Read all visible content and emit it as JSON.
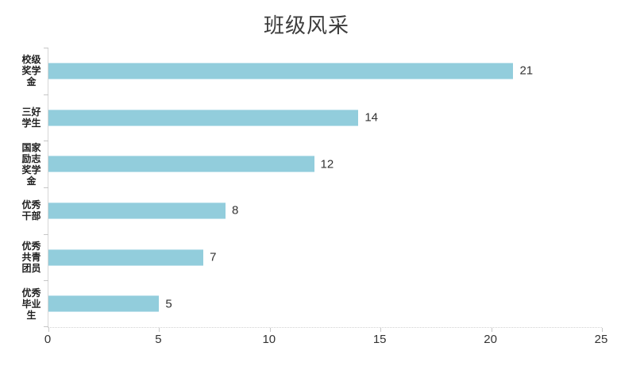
{
  "chart_data": {
    "type": "bar",
    "orientation": "horizontal",
    "title": "班级风采",
    "categories": [
      "校级奖学金",
      "三好学生",
      "国家励志奖学金",
      "优秀干部",
      "优秀共青团员",
      "优秀毕业生"
    ],
    "values": [
      21,
      14,
      12,
      8,
      7,
      5
    ],
    "data_labels": [
      "21",
      "14",
      "12",
      "8",
      "7",
      "5"
    ],
    "xlabel": "",
    "ylabel": "",
    "xlim": [
      0,
      25
    ],
    "x_ticks": [
      0,
      5,
      10,
      15,
      20,
      25
    ],
    "grid": false,
    "legend": false,
    "bar_color": "#92cddc",
    "axis_color": "#d6d6d6",
    "tick_color": "#c6c6c6",
    "title_color": "#3d3d3d",
    "label_color": "#333333",
    "category_label_color": "#1f1f1f",
    "background_color": "#ffffff"
  }
}
